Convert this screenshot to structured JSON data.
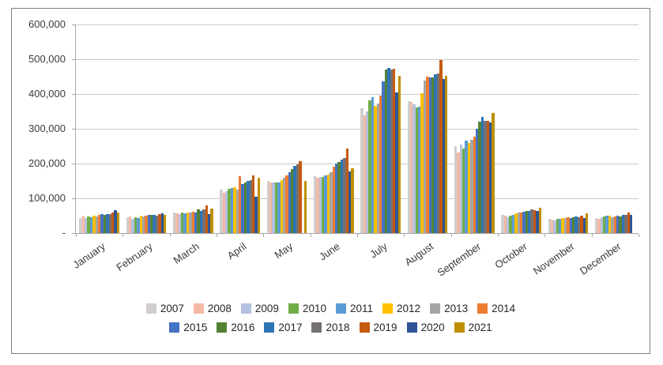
{
  "chart_data": {
    "type": "bar",
    "title": "",
    "xlabel": "",
    "ylabel": "",
    "categories": [
      "January",
      "February",
      "March",
      "April",
      "May",
      "June",
      "July",
      "August",
      "September",
      "October",
      "November",
      "December"
    ],
    "ylim": [
      0,
      600000
    ],
    "ytick_interval": 100000,
    "ytick_labels": [
      "600,000",
      "500,000",
      "400,000",
      "300,000",
      "200,000",
      "100,000",
      "-"
    ],
    "gridlines": true,
    "legend_position": "bottom",
    "legend_rows": [
      8,
      7
    ],
    "series": [
      {
        "name": "2007",
        "color": "#D2CECE",
        "values": [
          44000,
          46000,
          60000,
          125000,
          150000,
          163000,
          360000,
          380000,
          250000,
          52000,
          40000,
          44000
        ]
      },
      {
        "name": "2008",
        "color": "#F4B9A5",
        "values": [
          50000,
          48000,
          56000,
          115000,
          145000,
          160000,
          338000,
          377000,
          232000,
          49000,
          38000,
          40000
        ]
      },
      {
        "name": "2009",
        "color": "#B4C1E0",
        "values": [
          44000,
          42000,
          54000,
          120000,
          145000,
          162000,
          350000,
          370000,
          255000,
          46000,
          36000,
          45000
        ]
      },
      {
        "name": "2010",
        "color": "#70AD47",
        "values": [
          48000,
          46000,
          58000,
          128000,
          146000,
          162000,
          382000,
          362000,
          243000,
          50000,
          40000,
          47000
        ]
      },
      {
        "name": "2011",
        "color": "#5B9BD5",
        "values": [
          45000,
          44000,
          56000,
          130000,
          145000,
          165000,
          392000,
          364000,
          266000,
          52000,
          42000,
          49000
        ]
      },
      {
        "name": "2012",
        "color": "#FFC000",
        "values": [
          50000,
          49000,
          60000,
          132000,
          152000,
          168000,
          365000,
          403000,
          259000,
          56000,
          44000,
          50000
        ]
      },
      {
        "name": "2013",
        "color": "#A5A5A5",
        "values": [
          48000,
          47000,
          58000,
          124000,
          158000,
          175000,
          372000,
          438000,
          268000,
          58000,
          43000,
          46000
        ]
      },
      {
        "name": "2014",
        "color": "#ED7D31",
        "values": [
          53000,
          50000,
          62000,
          164000,
          165000,
          190000,
          396000,
          450000,
          277000,
          60000,
          46000,
          48000
        ]
      },
      {
        "name": "2015",
        "color": "#4472C4",
        "values": [
          55000,
          52000,
          60000,
          141000,
          175000,
          200000,
          436000,
          448000,
          300000,
          62000,
          44000,
          50000
        ]
      },
      {
        "name": "2016",
        "color": "#548235",
        "values": [
          52000,
          53000,
          68000,
          146000,
          185000,
          205000,
          470000,
          448000,
          320000,
          64000,
          46000,
          48000
        ]
      },
      {
        "name": "2017",
        "color": "#2E75B6",
        "values": [
          55000,
          52000,
          63000,
          150000,
          193000,
          211000,
          475000,
          456000,
          334000,
          64000,
          48000,
          52000
        ]
      },
      {
        "name": "2018",
        "color": "#767171",
        "values": [
          55000,
          50000,
          68000,
          152000,
          198000,
          216000,
          470000,
          460000,
          323000,
          68000,
          46000,
          52000
        ]
      },
      {
        "name": "2019",
        "color": "#C55A11",
        "values": [
          60000,
          55000,
          79000,
          166000,
          207000,
          243000,
          472000,
          498000,
          323000,
          65000,
          50000,
          58000
        ]
      },
      {
        "name": "2020",
        "color": "#2F5597",
        "values": [
          65000,
          57000,
          55000,
          105000,
          null,
          177000,
          405000,
          444000,
          318000,
          64000,
          44000,
          52000
        ]
      },
      {
        "name": "2021",
        "color": "#BF8F00",
        "values": [
          59000,
          52000,
          71000,
          159000,
          150000,
          186000,
          452000,
          453000,
          345000,
          72000,
          56000,
          null
        ]
      }
    ]
  }
}
